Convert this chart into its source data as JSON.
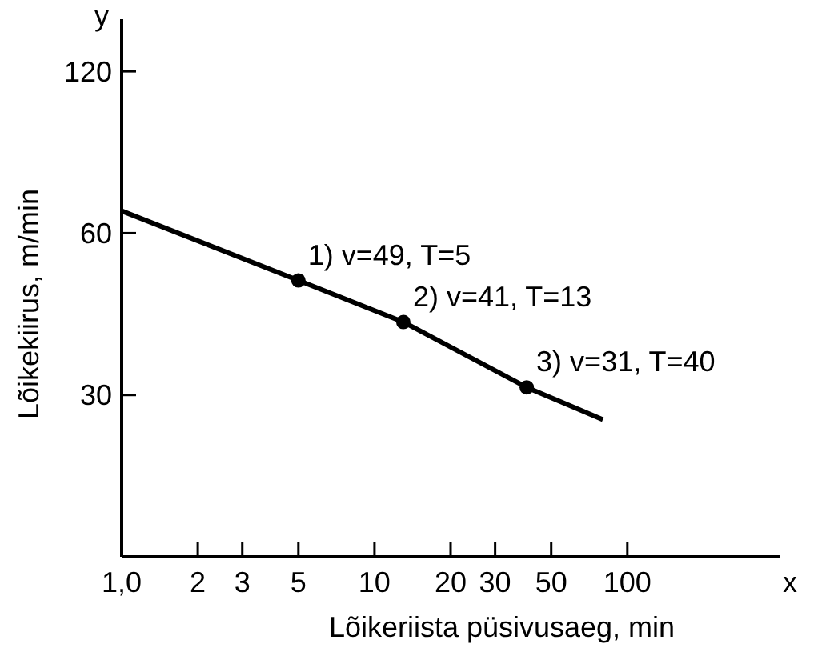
{
  "chart_data": {
    "type": "line",
    "xlabel": "Lõikeriista püsivusaeg, min",
    "ylabel": "Lõikekiirus, m/min",
    "log": "xy",
    "xlim": [
      1,
      400
    ],
    "xticks": [
      {
        "value": 1,
        "label": "1,0"
      },
      2,
      3,
      5,
      10,
      20,
      30,
      50,
      100
    ],
    "ylim": [
      15,
      150
    ],
    "yticks": [
      30,
      60,
      120
    ],
    "grid": false,
    "series": [
      {
        "type": "line",
        "color": "#000000",
        "x": [
          1,
          5,
          13,
          40,
          80
        ],
        "values": [
          66,
          49,
          41,
          31,
          27
        ],
        "marker": "none"
      },
      {
        "type": "scatter",
        "color": "#000000",
        "x": [
          5,
          13,
          40
        ],
        "values": [
          49,
          41,
          31
        ],
        "marker": "circle"
      }
    ],
    "annotations": [
      {
        "text": "1) v=49, T=5",
        "x": 5,
        "y": 49
      },
      {
        "text": "2) v=41, T=13",
        "x": 13,
        "y": 41
      },
      {
        "text": "3) v=31, T=40",
        "x": 40,
        "y": 31
      },
      "x",
      "y"
    ]
  }
}
